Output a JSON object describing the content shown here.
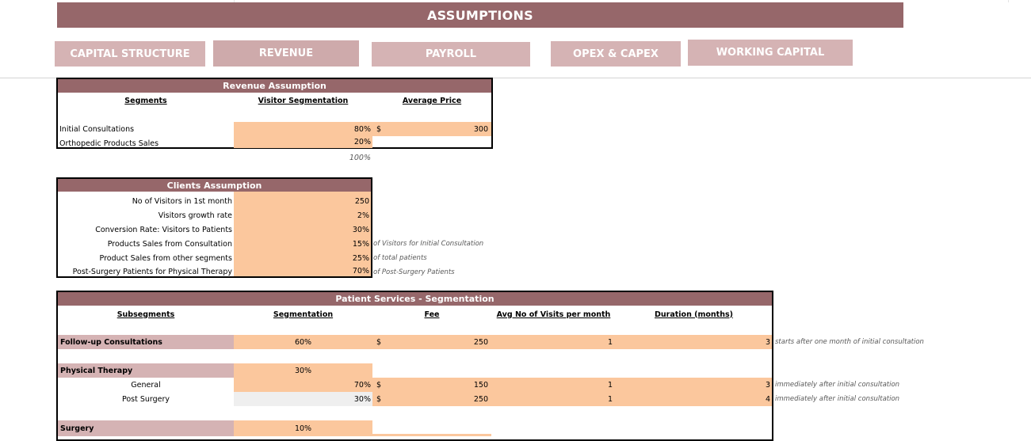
{
  "banner": {
    "title": "ASSUMPTIONS"
  },
  "nav": {
    "capital_structure": "CAPITAL STRUCTURE",
    "revenue": "REVENUE",
    "payroll": "PAYROLL",
    "opex_capex": "OPEX & CAPEX",
    "working_capital": "WORKING CAPITAL"
  },
  "colors": {
    "header": "#96676a",
    "nav": "#d5b3b4",
    "input": "#fbc79d",
    "segment": "#d5b3b4"
  },
  "revenue_assumption": {
    "title": "Revenue Assumption",
    "col_segments": "Segments",
    "col_visitor_seg": "Visitor Segmentation",
    "col_avg_price": "Average Price",
    "rows": [
      {
        "label": "Initial Consultations",
        "seg": "80%",
        "currency": "$",
        "price": "300"
      },
      {
        "label": "Orthopedic Products Sales",
        "seg": "20%"
      }
    ],
    "total": "100%"
  },
  "clients_assumption": {
    "title": "Clients Assumption",
    "rows": [
      {
        "label": "No of Visitors in 1st month",
        "value": "250",
        "note": ""
      },
      {
        "label": "Visitors growth rate",
        "value": "2%",
        "note": ""
      },
      {
        "label": "Conversion Rate: Visitors to Patients",
        "value": "30%",
        "note": ""
      },
      {
        "label": "Products Sales from Consultation",
        "value": "15%",
        "note": "of Visitors for Initial Consultation"
      },
      {
        "label": "Product Sales from other segments",
        "value": "25%",
        "note": "of total patients"
      },
      {
        "label": "Post-Surgery Patients for Physical Therapy",
        "value": "70%",
        "note": "of Post-Surgery Patients"
      }
    ]
  },
  "patient_services": {
    "title": "Patient Services - Segmentation",
    "col_subsegments": "Subsegments",
    "col_segmentation": "Segmentation",
    "col_fee": "Fee",
    "col_visits": "Avg No of Visits per month",
    "col_duration": "Duration (months)",
    "followup": {
      "label": "Follow-up Consultations",
      "seg": "60%",
      "currency": "$",
      "fee": "250",
      "visits": "1",
      "duration": "3",
      "note": "starts after one month of initial consultation"
    },
    "physical": {
      "label": "Physical Therapy",
      "seg": "30%"
    },
    "general": {
      "label": "General",
      "seg": "70%",
      "currency": "$",
      "fee": "150",
      "visits": "1",
      "duration": "3",
      "note": "immediately after initial consultation"
    },
    "post_surgery": {
      "label": "Post Surgery",
      "seg": "30%",
      "currency": "$",
      "fee": "250",
      "visits": "1",
      "duration": "4",
      "note": "immediately after initial consultation"
    },
    "surgery": {
      "label": "Surgery",
      "seg": "10%"
    }
  }
}
